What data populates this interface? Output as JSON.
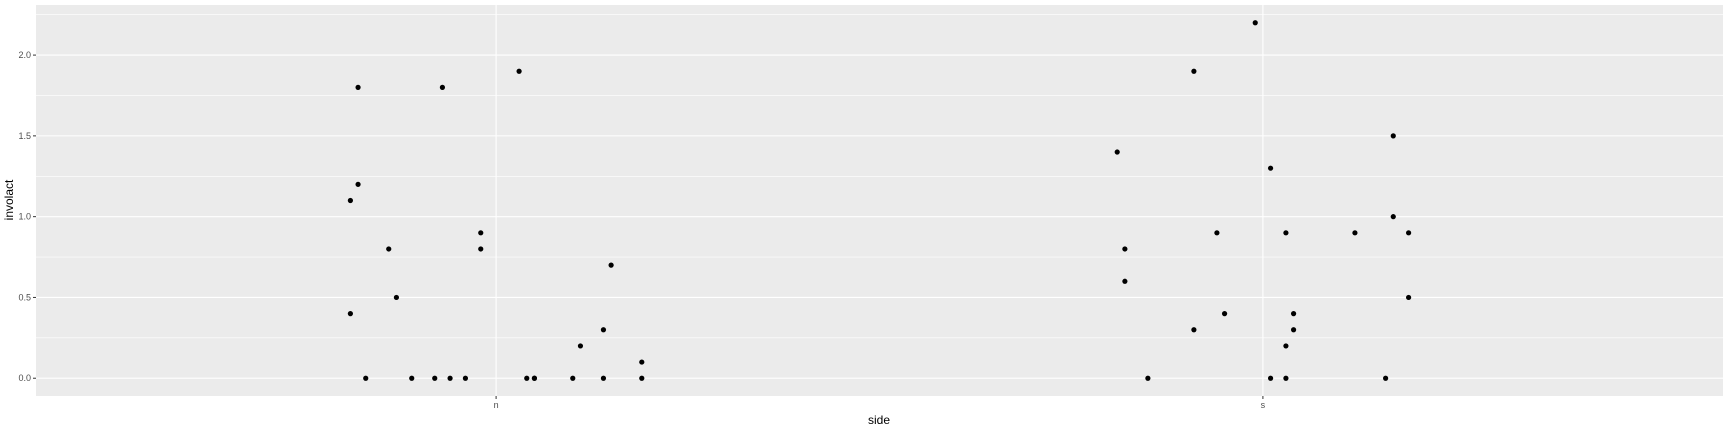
{
  "chart_data": {
    "type": "scatter",
    "title": "",
    "xlabel": "side",
    "ylabel": "involact",
    "categories": [
      "n",
      "s"
    ],
    "ylim": [
      -0.11,
      2.31
    ],
    "y_ticks": [
      0.0,
      0.5,
      1.0,
      1.5,
      2.0
    ],
    "y_tick_labels": [
      "0.0",
      "0.5",
      "1.0",
      "1.5",
      "2.0"
    ],
    "grid": true,
    "colors": {
      "panel": "#ebebeb",
      "grid": "#ffffff",
      "point": "#000000",
      "axis_text": "#4d4d4d"
    },
    "series": [
      {
        "category": "n",
        "points": [
          {
            "x": 0.82,
            "y": 1.8
          },
          {
            "x": 0.82,
            "y": 1.2
          },
          {
            "x": 0.81,
            "y": 1.1
          },
          {
            "x": 0.81,
            "y": 0.4
          },
          {
            "x": 0.83,
            "y": 0.0
          },
          {
            "x": 0.86,
            "y": 0.8
          },
          {
            "x": 0.87,
            "y": 0.5
          },
          {
            "x": 0.89,
            "y": 0.0
          },
          {
            "x": 0.93,
            "y": 1.8
          },
          {
            "x": 0.92,
            "y": 0.0
          },
          {
            "x": 0.94,
            "y": 0.0
          },
          {
            "x": 0.96,
            "y": 0.0
          },
          {
            "x": 0.98,
            "y": 0.9
          },
          {
            "x": 0.98,
            "y": 0.8
          },
          {
            "x": 1.03,
            "y": 1.9
          },
          {
            "x": 1.04,
            "y": 0.0
          },
          {
            "x": 1.05,
            "y": 0.0
          },
          {
            "x": 1.05,
            "y": 0.0
          },
          {
            "x": 1.1,
            "y": 0.0
          },
          {
            "x": 1.11,
            "y": 0.2
          },
          {
            "x": 1.14,
            "y": 0.0
          },
          {
            "x": 1.14,
            "y": 0.3
          },
          {
            "x": 1.15,
            "y": 0.7
          },
          {
            "x": 1.19,
            "y": 0.0
          },
          {
            "x": 1.19,
            "y": 0.1
          }
        ]
      },
      {
        "category": "s",
        "points": [
          {
            "x": 1.81,
            "y": 1.4
          },
          {
            "x": 1.82,
            "y": 0.8
          },
          {
            "x": 1.82,
            "y": 0.6
          },
          {
            "x": 1.85,
            "y": 0.0
          },
          {
            "x": 1.91,
            "y": 1.9
          },
          {
            "x": 1.91,
            "y": 0.3
          },
          {
            "x": 1.94,
            "y": 0.9
          },
          {
            "x": 1.95,
            "y": 0.4
          },
          {
            "x": 1.99,
            "y": 2.2
          },
          {
            "x": 2.01,
            "y": 1.3
          },
          {
            "x": 2.01,
            "y": 0.0
          },
          {
            "x": 2.03,
            "y": 0.2
          },
          {
            "x": 2.03,
            "y": 0.0
          },
          {
            "x": 2.03,
            "y": 0.9
          },
          {
            "x": 2.04,
            "y": 0.3
          },
          {
            "x": 2.04,
            "y": 0.4
          },
          {
            "x": 2.12,
            "y": 0.9
          },
          {
            "x": 2.16,
            "y": 0.0
          },
          {
            "x": 2.17,
            "y": 1.0
          },
          {
            "x": 2.17,
            "y": 1.5
          },
          {
            "x": 2.19,
            "y": 0.9
          },
          {
            "x": 2.19,
            "y": 0.5
          }
        ]
      }
    ]
  }
}
